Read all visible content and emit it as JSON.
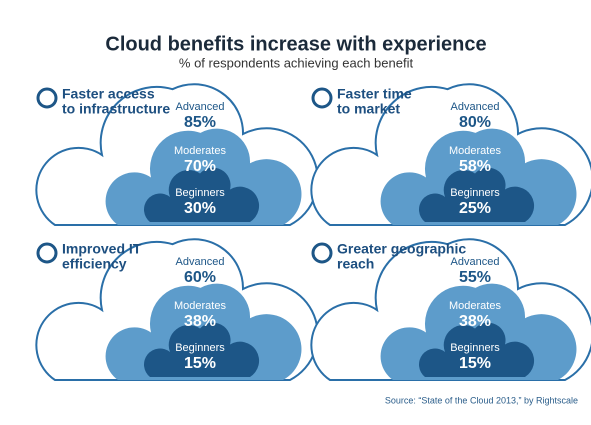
{
  "header": {
    "title": "Cloud benefits increase with experience",
    "subtitle": "% of respondents achieving each benefit"
  },
  "panels": [
    {
      "title_lines": [
        "Faster access",
        "to infrastructure"
      ],
      "levels": [
        {
          "name": "Advanced",
          "value": "85%"
        },
        {
          "name": "Moderates",
          "value": "70%"
        },
        {
          "name": "Beginners",
          "value": "30%"
        }
      ]
    },
    {
      "title_lines": [
        "Faster time",
        "to market"
      ],
      "levels": [
        {
          "name": "Advanced",
          "value": "80%"
        },
        {
          "name": "Moderates",
          "value": "58%"
        },
        {
          "name": "Beginners",
          "value": "25%"
        }
      ]
    },
    {
      "title_lines": [
        "Improved IT",
        "efficiency"
      ],
      "levels": [
        {
          "name": "Advanced",
          "value": "60%"
        },
        {
          "name": "Moderates",
          "value": "38%"
        },
        {
          "name": "Beginners",
          "value": "15%"
        }
      ]
    },
    {
      "title_lines": [
        "Greater geographic",
        "reach"
      ],
      "levels": [
        {
          "name": "Advanced",
          "value": "55%"
        },
        {
          "name": "Moderates",
          "value": "38%"
        },
        {
          "name": "Beginners",
          "value": "15%"
        }
      ]
    }
  ],
  "source": "Source: “State of the Cloud 2013,” by Rightscale"
}
